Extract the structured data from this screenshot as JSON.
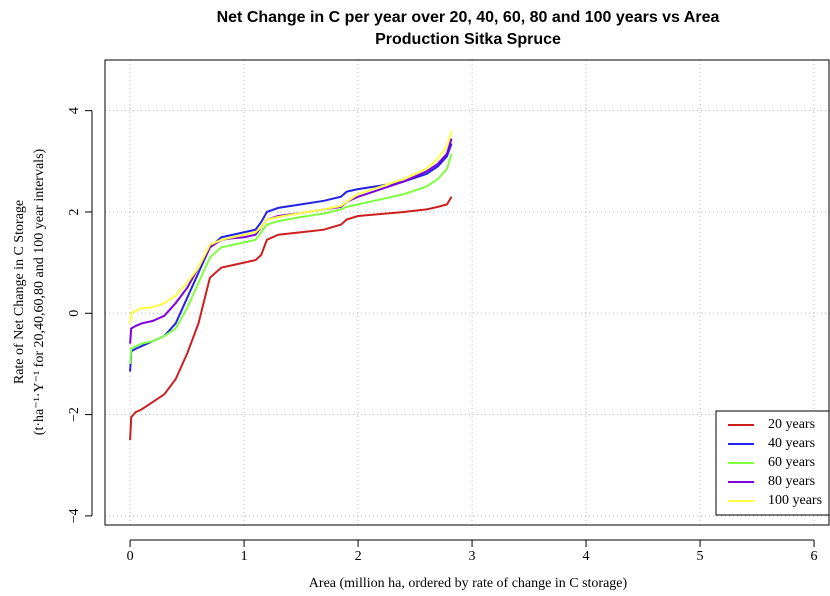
{
  "chart_data": {
    "type": "line",
    "title": [
      "Net Change in C per year over 20, 40, 60, 80 and 100 years vs Area",
      "Production Sitka Spruce"
    ],
    "xlabel": "Area (million ha, ordered by rate of change in C storage)",
    "ylabel": [
      "Rate of Net Change in C Storage",
      "(t·ha⁻¹·Y⁻¹ for 20,40,60,80 and 100 year intervals)"
    ],
    "x": [
      0,
      0.01,
      0.05,
      0.1,
      0.2,
      0.3,
      0.4,
      0.5,
      0.6,
      0.7,
      0.8,
      0.9,
      1.0,
      1.1,
      1.15,
      1.2,
      1.3,
      1.5,
      1.7,
      1.85,
      1.9,
      2.0,
      2.2,
      2.4,
      2.6,
      2.7,
      2.78,
      2.82
    ],
    "series": [
      {
        "name": "20 years",
        "color": "#cc1f1f",
        "values": [
          -2.5,
          -2.05,
          -1.95,
          -1.9,
          -1.75,
          -1.6,
          -1.3,
          -0.8,
          -0.2,
          0.7,
          0.9,
          0.95,
          1.0,
          1.05,
          1.15,
          1.45,
          1.55,
          1.6,
          1.65,
          1.75,
          1.85,
          1.92,
          1.96,
          2.0,
          2.05,
          2.1,
          2.15,
          2.3
        ]
      },
      {
        "name": "40 years",
        "color": "#2323e8",
        "values": [
          -1.15,
          -0.75,
          -0.7,
          -0.65,
          -0.55,
          -0.45,
          -0.2,
          0.3,
          0.8,
          1.3,
          1.5,
          1.55,
          1.6,
          1.65,
          1.8,
          2.0,
          2.08,
          2.15,
          2.22,
          2.3,
          2.4,
          2.45,
          2.52,
          2.6,
          2.75,
          2.9,
          3.1,
          3.35
        ]
      },
      {
        "name": "60 years",
        "color": "#7fff3f",
        "values": [
          -1.0,
          -0.7,
          -0.65,
          -0.6,
          -0.55,
          -0.45,
          -0.3,
          0.1,
          0.6,
          1.1,
          1.3,
          1.35,
          1.4,
          1.45,
          1.6,
          1.75,
          1.82,
          1.9,
          1.97,
          2.05,
          2.1,
          2.15,
          2.25,
          2.35,
          2.5,
          2.65,
          2.85,
          3.15
        ]
      },
      {
        "name": "80 years",
        "color": "#7f00df",
        "values": [
          -0.6,
          -0.3,
          -0.25,
          -0.2,
          -0.15,
          -0.05,
          0.2,
          0.5,
          0.9,
          1.3,
          1.45,
          1.48,
          1.5,
          1.55,
          1.7,
          1.85,
          1.92,
          1.98,
          2.05,
          2.1,
          2.2,
          2.3,
          2.45,
          2.6,
          2.8,
          2.95,
          3.15,
          3.45
        ]
      },
      {
        "name": "100 years",
        "color": "#ffff3f",
        "values": [
          -0.2,
          0.0,
          0.05,
          0.1,
          0.12,
          0.2,
          0.35,
          0.6,
          0.9,
          1.35,
          1.45,
          1.5,
          1.55,
          1.6,
          1.7,
          1.85,
          1.9,
          1.98,
          2.05,
          2.12,
          2.2,
          2.35,
          2.5,
          2.65,
          2.85,
          3.05,
          3.3,
          3.6
        ]
      }
    ],
    "xlim": [
      -0.22,
      6.14
    ],
    "xticks": [
      0,
      1,
      2,
      3,
      4,
      5,
      6
    ],
    "ylim": [
      -4.18,
      5.0
    ],
    "yticks": [
      {
        "value": -4,
        "label": "−4"
      },
      {
        "value": -2,
        "label": "−2"
      },
      0,
      2,
      4
    ],
    "grid": true,
    "legend": "bottomright"
  }
}
